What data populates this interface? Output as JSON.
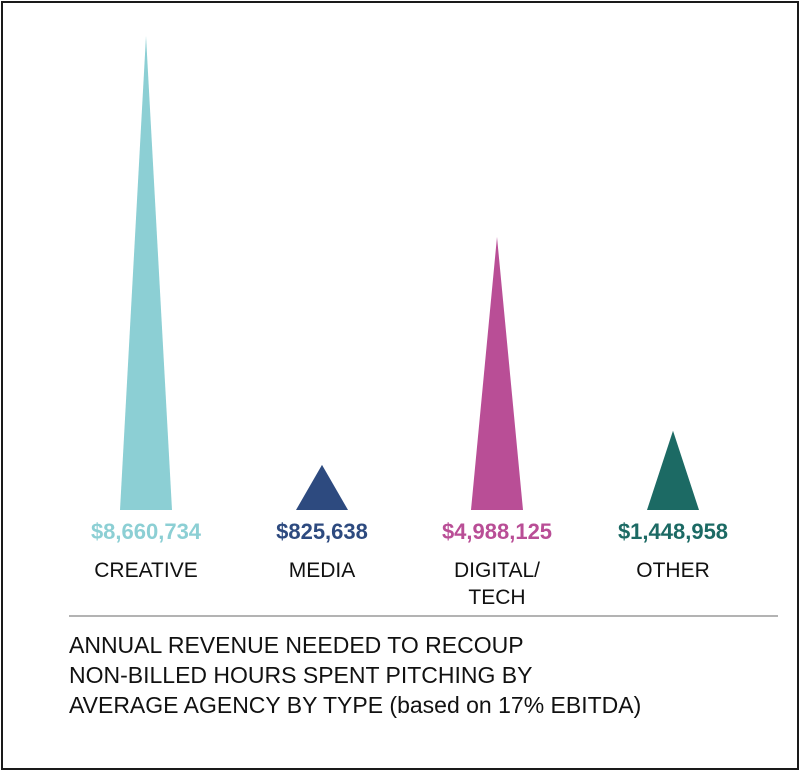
{
  "chart_data": {
    "type": "bar",
    "mark_shape": "spike-triangle",
    "categories": [
      "CREATIVE",
      "MEDIA",
      "DIGITAL/\nTECH",
      "OTHER"
    ],
    "category_lines": [
      [
        "CREATIVE"
      ],
      [
        "MEDIA"
      ],
      [
        "DIGITAL/",
        "TECH"
      ],
      [
        "OTHER"
      ]
    ],
    "values": [
      8660734,
      825638,
      4988125,
      1448958
    ],
    "value_labels": [
      "$8,660,734",
      "$825,638",
      "$4,988,125",
      "$1,448,958"
    ],
    "colors": [
      "#8ccfd4",
      "#2d4a7f",
      "#b94e96",
      "#1c6a64"
    ],
    "grid": false,
    "legend": "none"
  },
  "caption": {
    "lines": [
      "ANNUAL REVENUE NEEDED TO RECOUP",
      "NON-BILLED HOURS SPENT PITCHING BY",
      "AVERAGE AGENCY BY TYPE (based on 17% EBITDA)"
    ]
  }
}
